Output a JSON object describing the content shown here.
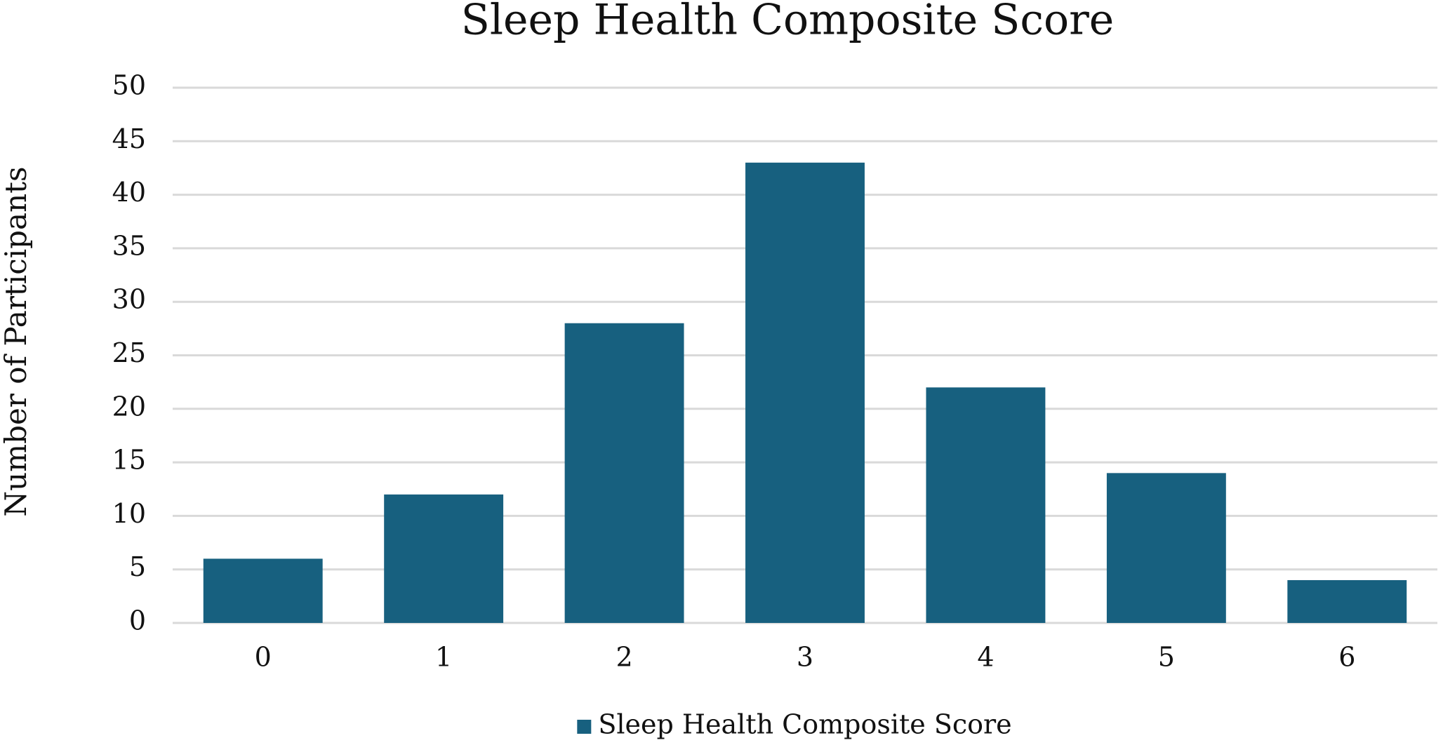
{
  "chart_data": {
    "type": "bar",
    "title": "Sleep Health Composite Score",
    "y_label": "Number of Participants",
    "categories": [
      "0",
      "1",
      "2",
      "3",
      "4",
      "5",
      "6"
    ],
    "series": [
      {
        "name": "Sleep Health Composite Score",
        "color": "#17607f",
        "values": [
          6,
          12,
          28,
          43,
          22,
          14,
          4
        ]
      }
    ],
    "ylim": [
      0,
      50
    ],
    "yticks": [
      0,
      5,
      10,
      15,
      20,
      25,
      30,
      35,
      40,
      45,
      50
    ],
    "grid": true,
    "legend": "bottom"
  }
}
